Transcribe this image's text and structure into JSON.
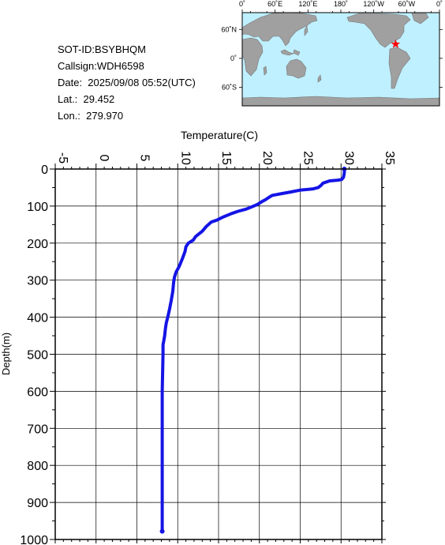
{
  "header": {
    "sot_id": "SOT-ID:BSYBHQM",
    "callsign": "Callsign:WDH6598",
    "date": "Date:  2025/09/08 05:52(UTC)",
    "lat": "Lat.:  29.452",
    "lon": "Lon.:  279.970"
  },
  "map": {
    "top_labels": [
      "0˚",
      "60˚E",
      "120˚E",
      "180˚",
      "120˚W",
      "60˚W",
      "0˚"
    ],
    "left_labels": [
      "60˚N",
      "0˚",
      "60˚S"
    ],
    "ocean_color": "#bff0ff",
    "land_color": "#a0a0a0",
    "marker_color": "#ff0000",
    "marker": {
      "lon": 279.97,
      "lat": 29.452
    }
  },
  "chart_data": {
    "type": "line",
    "xlabel": "Temperature(C)",
    "ylabel": "Depth(m)",
    "xlim": [
      -5,
      35
    ],
    "ylim": [
      1000,
      0
    ],
    "x_ticks": [
      "-5",
      "0",
      "5",
      "10",
      "15",
      "20",
      "25",
      "30",
      "35"
    ],
    "y_ticks": [
      "0",
      "100",
      "200",
      "300",
      "400",
      "500",
      "600",
      "700",
      "800",
      "900",
      "1000"
    ],
    "grid": true,
    "line_color": "#1414e6",
    "series": [
      {
        "points": [
          [
            30.4,
            0
          ],
          [
            30.4,
            10
          ],
          [
            30.3,
            22
          ],
          [
            30.1,
            28
          ],
          [
            29.6,
            30
          ],
          [
            28.6,
            32
          ],
          [
            27.8,
            38
          ],
          [
            27.5,
            45
          ],
          [
            27.2,
            50
          ],
          [
            26.5,
            54
          ],
          [
            25.0,
            57
          ],
          [
            23.8,
            62
          ],
          [
            22.8,
            66
          ],
          [
            21.6,
            71
          ],
          [
            21.2,
            76
          ],
          [
            20.8,
            82
          ],
          [
            20.3,
            88
          ],
          [
            19.8,
            95
          ],
          [
            19.3,
            100
          ],
          [
            18.4,
            108
          ],
          [
            17.4,
            114
          ],
          [
            16.6,
            120
          ],
          [
            15.5,
            130
          ],
          [
            14.8,
            138
          ],
          [
            14.1,
            143
          ],
          [
            13.5,
            155
          ],
          [
            13.0,
            168
          ],
          [
            12.2,
            182
          ],
          [
            11.9,
            192
          ],
          [
            11.3,
            200
          ],
          [
            11.0,
            210
          ],
          [
            10.9,
            222
          ],
          [
            10.6,
            240
          ],
          [
            10.2,
            262
          ],
          [
            9.8,
            278
          ],
          [
            9.6,
            292
          ],
          [
            9.5,
            305
          ],
          [
            9.4,
            330
          ],
          [
            9.2,
            355
          ],
          [
            9.0,
            378
          ],
          [
            8.8,
            398
          ],
          [
            8.6,
            415
          ],
          [
            8.5,
            430
          ],
          [
            8.4,
            450
          ],
          [
            8.2,
            475
          ],
          [
            8.2,
            500
          ],
          [
            8.1,
            600
          ],
          [
            8.1,
            700
          ],
          [
            8.1,
            800
          ],
          [
            8.1,
            900
          ],
          [
            8.1,
            978
          ]
        ]
      }
    ]
  }
}
